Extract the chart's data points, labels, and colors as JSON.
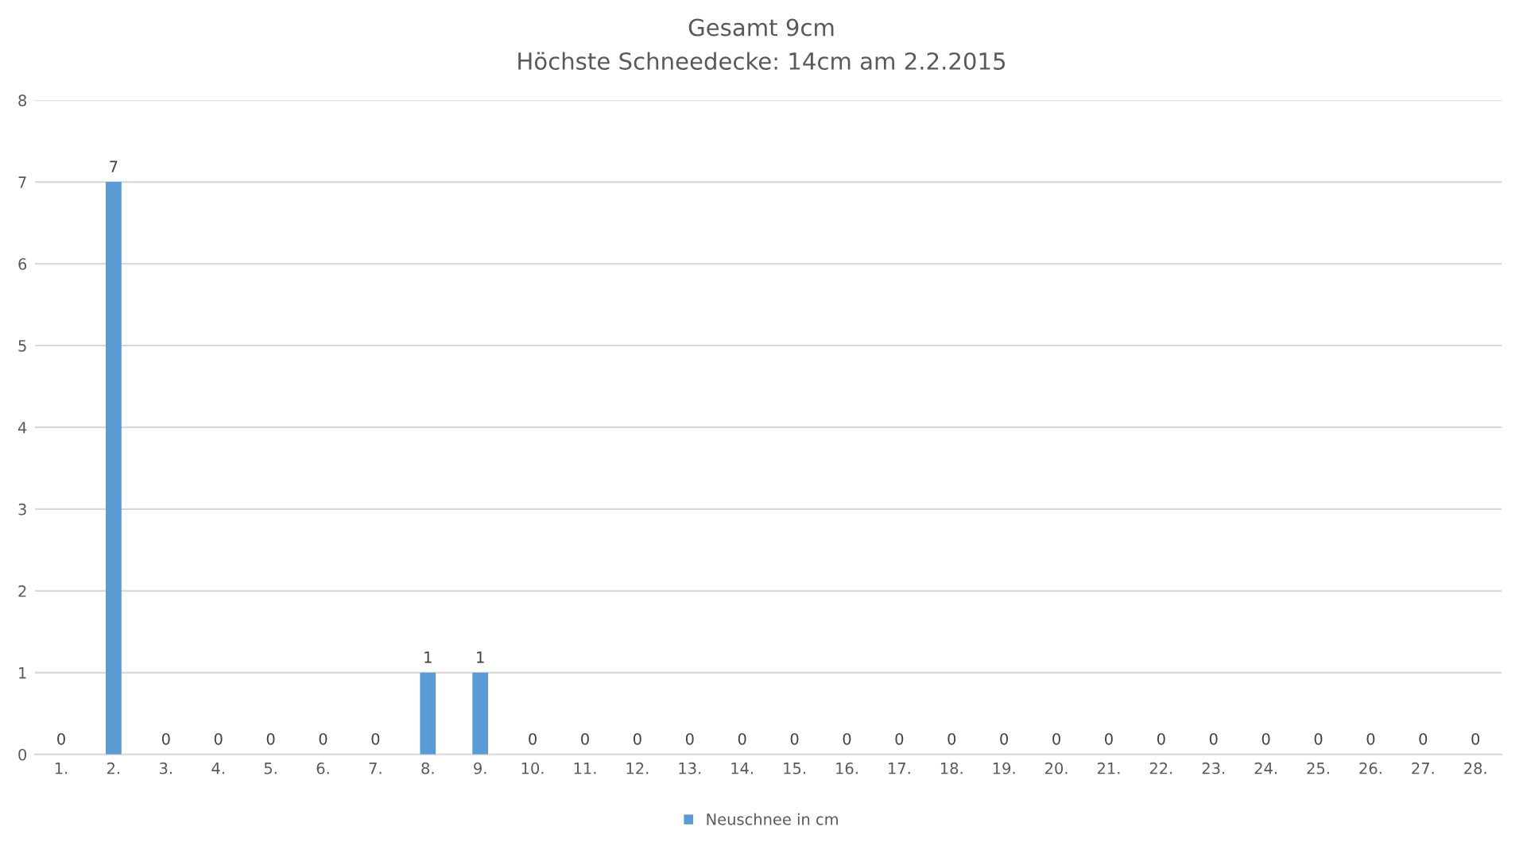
{
  "chart_data": {
    "type": "bar",
    "title": "Gesamt 9cm",
    "subtitle": "Höchste Schneedecke: 14cm am 2.2.2015",
    "categories": [
      "1.",
      "2.",
      "3.",
      "4.",
      "5.",
      "6.",
      "7.",
      "8.",
      "9.",
      "10.",
      "11.",
      "12.",
      "13.",
      "14.",
      "15.",
      "16.",
      "17.",
      "18.",
      "19.",
      "20.",
      "21.",
      "22.",
      "23.",
      "24.",
      "25.",
      "26.",
      "27.",
      "28."
    ],
    "series": [
      {
        "name": "Neuschnee in cm",
        "color": "#5b9bd5",
        "values": [
          0,
          7,
          0,
          0,
          0,
          0,
          0,
          1,
          1,
          0,
          0,
          0,
          0,
          0,
          0,
          0,
          0,
          0,
          0,
          0,
          0,
          0,
          0,
          0,
          0,
          0,
          0,
          0
        ]
      }
    ],
    "ylim": [
      0,
      8
    ],
    "yticks": [
      0,
      1,
      2,
      3,
      4,
      5,
      6,
      7,
      8
    ],
    "grid": "y",
    "legend": "bottom",
    "data_labels": true
  }
}
